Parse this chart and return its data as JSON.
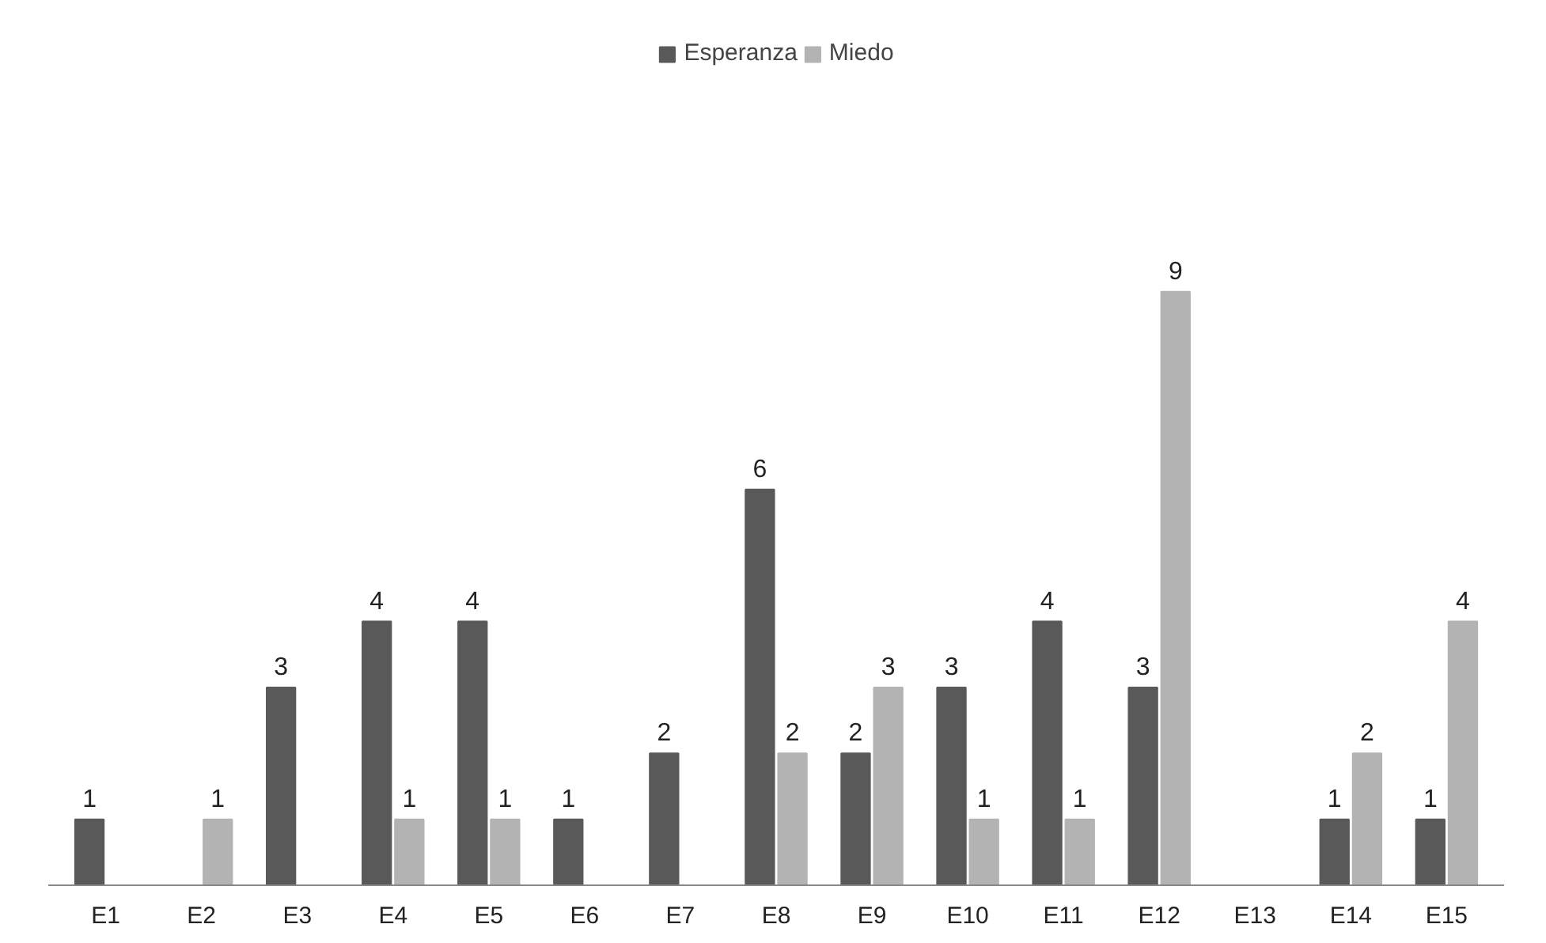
{
  "chart_data": {
    "type": "bar",
    "categories": [
      "E1",
      "E2",
      "E3",
      "E4",
      "E5",
      "E6",
      "E7",
      "E8",
      "E9",
      "E10",
      "E11",
      "E12",
      "E13",
      "E14",
      "E15"
    ],
    "series": [
      {
        "name": "Esperanza",
        "color": "#595959",
        "values": [
          1,
          null,
          3,
          4,
          4,
          1,
          2,
          6,
          2,
          3,
          4,
          3,
          null,
          1,
          1
        ]
      },
      {
        "name": "Miedo",
        "color": "#b3b3b3",
        "values": [
          null,
          1,
          null,
          1,
          1,
          null,
          null,
          2,
          3,
          1,
          1,
          9,
          null,
          2,
          4
        ]
      }
    ],
    "data_labels": true,
    "legend": "top",
    "grid": false
  }
}
